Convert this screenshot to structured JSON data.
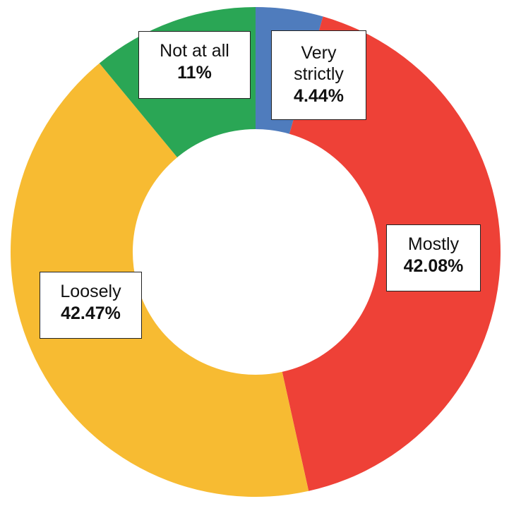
{
  "chart_data": {
    "type": "pie",
    "variant": "donut",
    "title": "",
    "slices": [
      {
        "label": "Very strictly",
        "label_lines": [
          "Very",
          "strictly"
        ],
        "value": 4.44,
        "value_text": "4.44%",
        "color": "#4f7cbd"
      },
      {
        "label": "Mostly",
        "label_lines": [
          "Mostly"
        ],
        "value": 42.08,
        "value_text": "42.08%",
        "color": "#ee4137"
      },
      {
        "label": "Loosely",
        "label_lines": [
          "Loosely"
        ],
        "value": 42.47,
        "value_text": "42.47%",
        "color": "#f7bb32"
      },
      {
        "label": "Not at all",
        "label_lines": [
          "Not at all"
        ],
        "value": 11,
        "value_text": "11%",
        "color": "#2aa655"
      }
    ],
    "start_angle": "12 o'clock",
    "direction": "clockwise",
    "legend": "none (labels placed on slices)"
  }
}
